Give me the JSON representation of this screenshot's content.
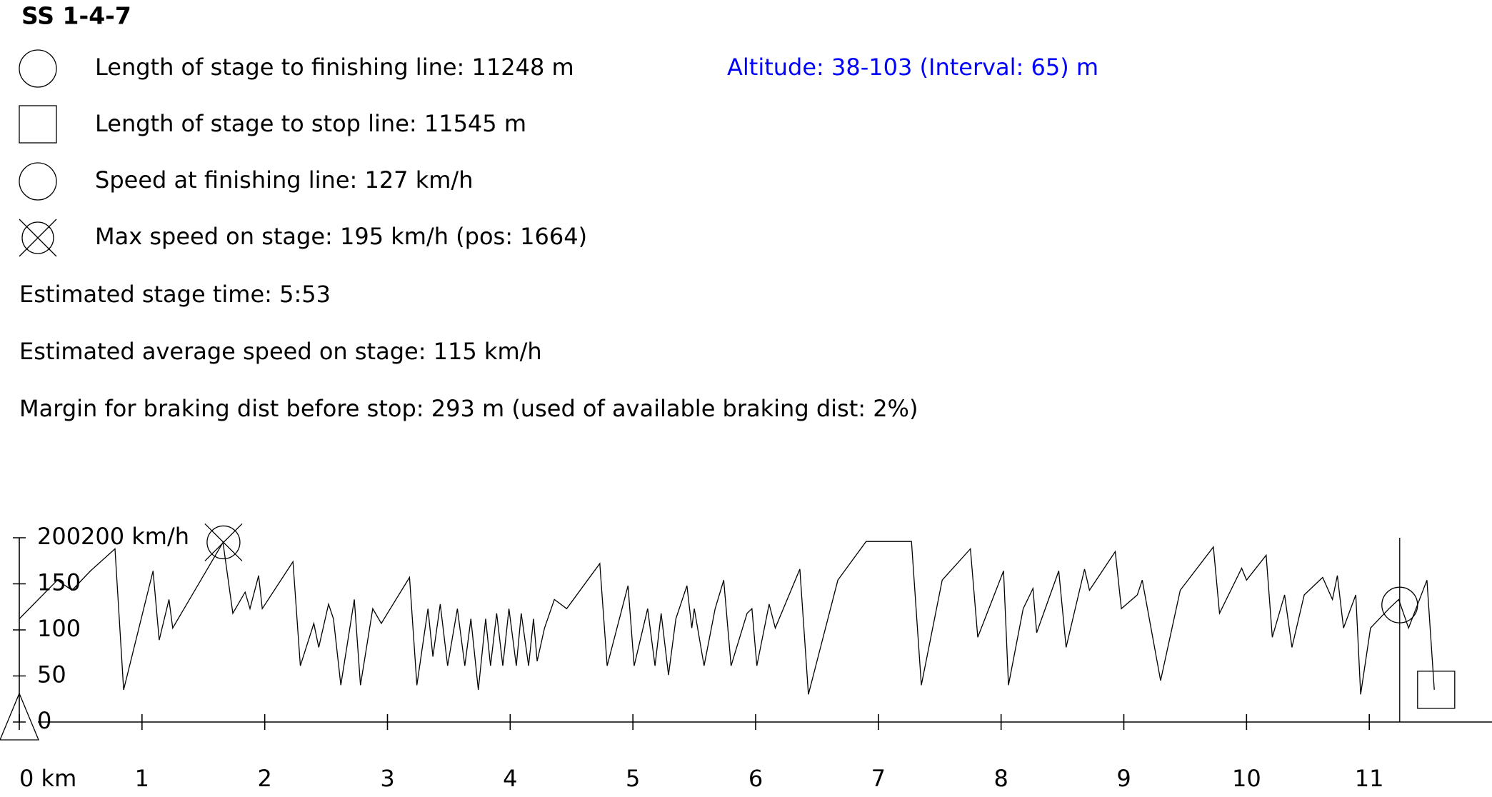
{
  "header": {
    "title": "SS 1-4-7"
  },
  "info": [
    "Length of stage to finishing line: 11248 m",
    "Length of stage to stop line: 11545 m",
    "Speed at finishing line: 127 km/h",
    "Max speed on stage: 195 km/h (pos: 1664)",
    "Estimated stage time: 5:53",
    "Estimated average speed on stage: 115 km/h",
    "Margin for braking dist before stop: 293 m (used of available braking dist: 2%)"
  ],
  "altitude": "Altitude: 38-103 (Interval: 65) m",
  "chart_data": {
    "type": "line",
    "y_label": "200 km/h",
    "color": "#000000",
    "xlim": [
      0,
      12
    ],
    "ylim": [
      0,
      200
    ],
    "xticks": [
      {
        "value": 0,
        "label": "0 km"
      },
      1,
      2,
      3,
      4,
      5,
      6,
      7,
      8,
      9,
      10,
      11
    ],
    "yticks": [
      0,
      50,
      100,
      150,
      200
    ],
    "x": [
      0,
      0.31,
      0.43,
      0.58,
      0.78,
      0.85,
      1.09,
      1.14,
      1.22,
      1.25,
      1.66,
      1.74,
      1.84,
      1.88,
      1.95,
      1.98,
      2.23,
      2.29,
      2.4,
      2.44,
      2.52,
      2.56,
      2.62,
      2.73,
      2.78,
      2.88,
      2.95,
      3.0,
      3.18,
      3.24,
      3.33,
      3.37,
      3.43,
      3.49,
      3.57,
      3.63,
      3.68,
      3.74,
      3.8,
      3.84,
      3.89,
      3.94,
      3.99,
      4.05,
      4.09,
      4.15,
      4.19,
      4.22,
      4.28,
      4.36,
      4.46,
      4.73,
      4.79,
      4.96,
      5.01,
      5.12,
      5.18,
      5.23,
      5.29,
      5.35,
      5.44,
      5.48,
      5.5,
      5.58,
      5.67,
      5.74,
      5.8,
      5.93,
      5.97,
      6.01,
      6.11,
      6.16,
      6.36,
      6.43,
      6.67,
      6.9,
      7.27,
      7.35,
      7.52,
      7.75,
      7.81,
      8.02,
      8.06,
      8.18,
      8.26,
      8.29,
      8.47,
      8.53,
      8.68,
      8.72,
      8.93,
      8.98,
      9.11,
      9.15,
      9.3,
      9.46,
      9.73,
      9.78,
      9.96,
      10.0,
      10.16,
      10.21,
      10.31,
      10.37,
      10.47,
      10.62,
      10.7,
      10.74,
      10.79,
      10.89,
      10.93,
      11.01,
      11.16,
      11.24,
      11.32,
      11.47,
      11.53
    ],
    "values": [
      112,
      154,
      143,
      164,
      188,
      35,
      164,
      89,
      133,
      102,
      195,
      118,
      141,
      123,
      159,
      123,
      174,
      61,
      107,
      81,
      128,
      112,
      40,
      133,
      40,
      123,
      107,
      118,
      157,
      40,
      123,
      71,
      128,
      61,
      123,
      61,
      112,
      35,
      112,
      61,
      118,
      61,
      123,
      61,
      118,
      61,
      112,
      66,
      102,
      133,
      123,
      172,
      61,
      148,
      61,
      123,
      61,
      118,
      51,
      112,
      148,
      102,
      123,
      61,
      123,
      154,
      61,
      118,
      123,
      61,
      128,
      102,
      166,
      30,
      154,
      196,
      196,
      40,
      154,
      188,
      92,
      164,
      40,
      123,
      145,
      97,
      164,
      81,
      166,
      143,
      185,
      123,
      138,
      154,
      45,
      143,
      190,
      118,
      167,
      154,
      181,
      92,
      138,
      81,
      138,
      157,
      133,
      159,
      102,
      138,
      30,
      102,
      123,
      133,
      102,
      154,
      35
    ],
    "markers": [
      {
        "shape": "triangle",
        "x": 0,
        "y": 0
      },
      {
        "shape": "crossed-circle",
        "x": 1.664,
        "y": 195
      },
      {
        "shape": "circle",
        "x": 11.248,
        "y": 127
      },
      {
        "shape": "square",
        "x": 11.545,
        "y": 35
      }
    ],
    "finish_line": 11.248
  }
}
